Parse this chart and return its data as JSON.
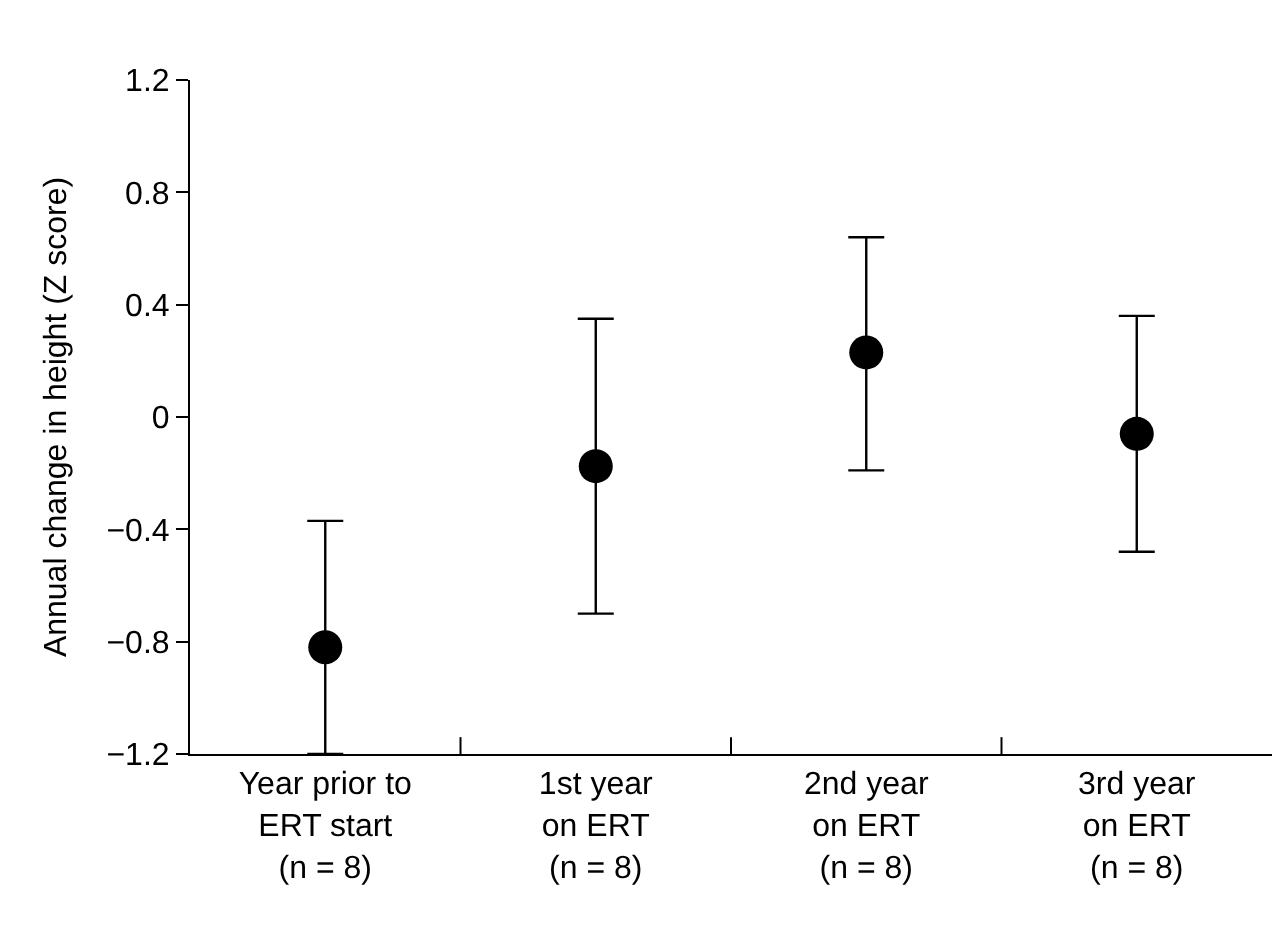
{
  "chart_data": {
    "type": "scatter",
    "ylabel": "Annual change in height (Z score)",
    "categories": [
      "Year prior to\nERT start\n(n = 8)",
      "1st year\non ERT\n(n = 8)",
      "2nd year\non ERT\n(n = 8)",
      "3rd year\non ERT\n(n = 8)"
    ],
    "series": [
      {
        "color": "#000000",
        "values": [
          -0.82,
          -0.175,
          0.23,
          -0.06
        ],
        "errors": [
          [
            -1.2,
            -0.37
          ],
          [
            -0.7,
            0.35
          ],
          [
            -0.19,
            0.64
          ],
          [
            -0.48,
            0.36
          ]
        ]
      }
    ],
    "ylim": [
      -1.2,
      1.2
    ],
    "yticks": [
      {
        "value": -1.2,
        "label": "−1.2"
      },
      {
        "value": -0.8,
        "label": "−0.8"
      },
      {
        "value": -0.4,
        "label": "−0.4"
      },
      0,
      0.4,
      0.8,
      1.2
    ],
    "marker": "circle"
  }
}
